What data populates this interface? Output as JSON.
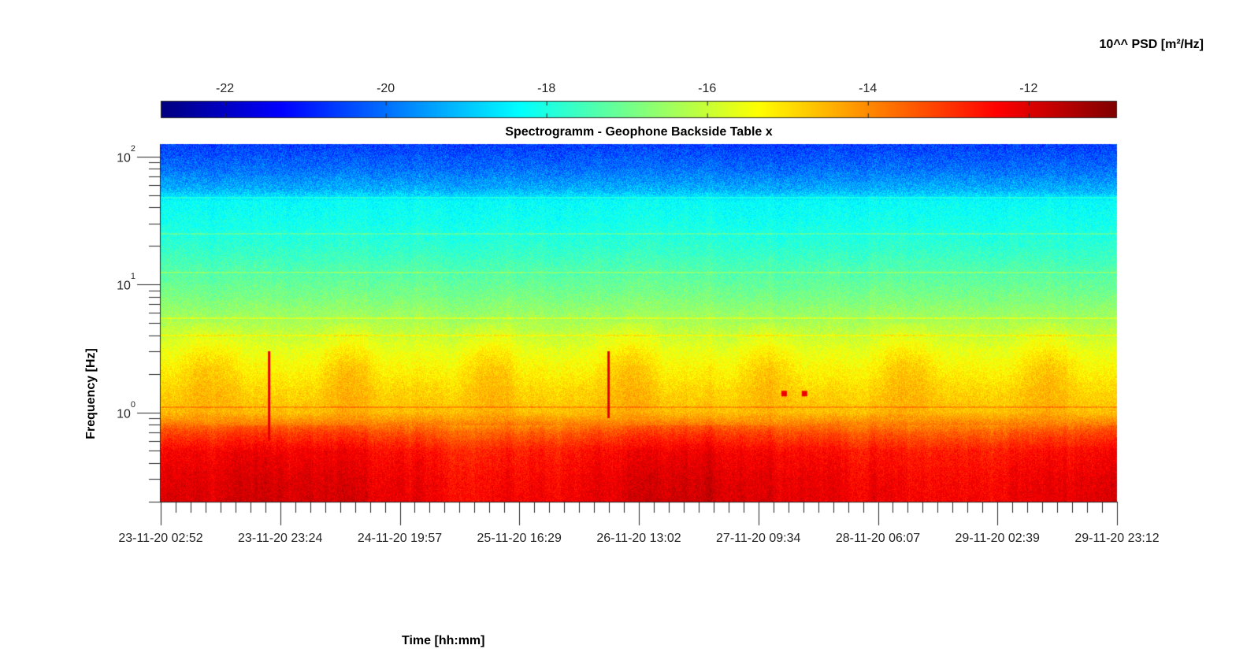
{
  "chart_data": {
    "type": "heatmap",
    "title": "Spectrogramm - Geophone Backside Table x",
    "xlabel": "Time [hh:mm]",
    "ylabel": "Frequency [Hz]",
    "colorbar": {
      "label": "10^^ PSD [m²/Hz]",
      "range": [
        -22.8,
        -10.9
      ],
      "ticks": [
        -22,
        -20,
        -18,
        -16,
        -14,
        -12
      ],
      "colormap": "jet",
      "placement": "top"
    },
    "x_axis": {
      "range": [
        "23-11-20 02:52",
        "29-11-20 23:12"
      ],
      "tick_labels": [
        "23-11-20 02:52",
        "23-11-20 23:24",
        "24-11-20 19:57",
        "25-11-20 16:29",
        "26-11-20 13:02",
        "27-11-20 09:34",
        "28-11-20 06:07",
        "29-11-20 02:39",
        "29-11-20 23:12"
      ]
    },
    "y_axis": {
      "scale": "log",
      "range": [
        0.2,
        125
      ],
      "tick_labels": [
        {
          "base": "10",
          "exp": "0",
          "value": 1
        },
        {
          "base": "10",
          "exp": "1",
          "value": 10
        },
        {
          "base": "10",
          "exp": "2",
          "value": 100
        }
      ]
    },
    "psd_profile": {
      "frequencies_hz": [
        0.2,
        0.3,
        0.5,
        0.7,
        1,
        1.5,
        2,
        3,
        5,
        8,
        12,
        20,
        30,
        45,
        55,
        80,
        125
      ],
      "log10_psd": [
        -12.1,
        -12.2,
        -12.5,
        -13.3,
        -14.6,
        -14.9,
        -15.2,
        -15.6,
        -16.3,
        -16.9,
        -17.3,
        -17.8,
        -18.1,
        -18.3,
        -19.2,
        -20.0,
        -20.6
      ]
    },
    "features": [
      {
        "type": "spectral_line",
        "frequency_hz": 48
      },
      {
        "type": "spectral_line",
        "frequency_hz": 25
      },
      {
        "type": "spectral_line",
        "frequency_hz": 12.5
      },
      {
        "type": "spectral_line",
        "frequency_hz": 5.5
      },
      {
        "type": "spectral_line",
        "frequency_hz": 4.0
      },
      {
        "type": "spectral_line",
        "frequency_hz": 1.1
      },
      {
        "type": "transient",
        "time": "23-11-20 21:30",
        "f_low": 0.6,
        "f_high": 3
      },
      {
        "type": "transient",
        "time": "26-11-20 07:50",
        "f_low": 0.9,
        "f_high": 3
      },
      {
        "type": "transient",
        "time": "27-11-20 14:00",
        "frequency_hz": 1.4
      },
      {
        "type": "transient",
        "time": "27-11-20 17:30",
        "frequency_hz": 1.4
      }
    ],
    "grid": false
  }
}
